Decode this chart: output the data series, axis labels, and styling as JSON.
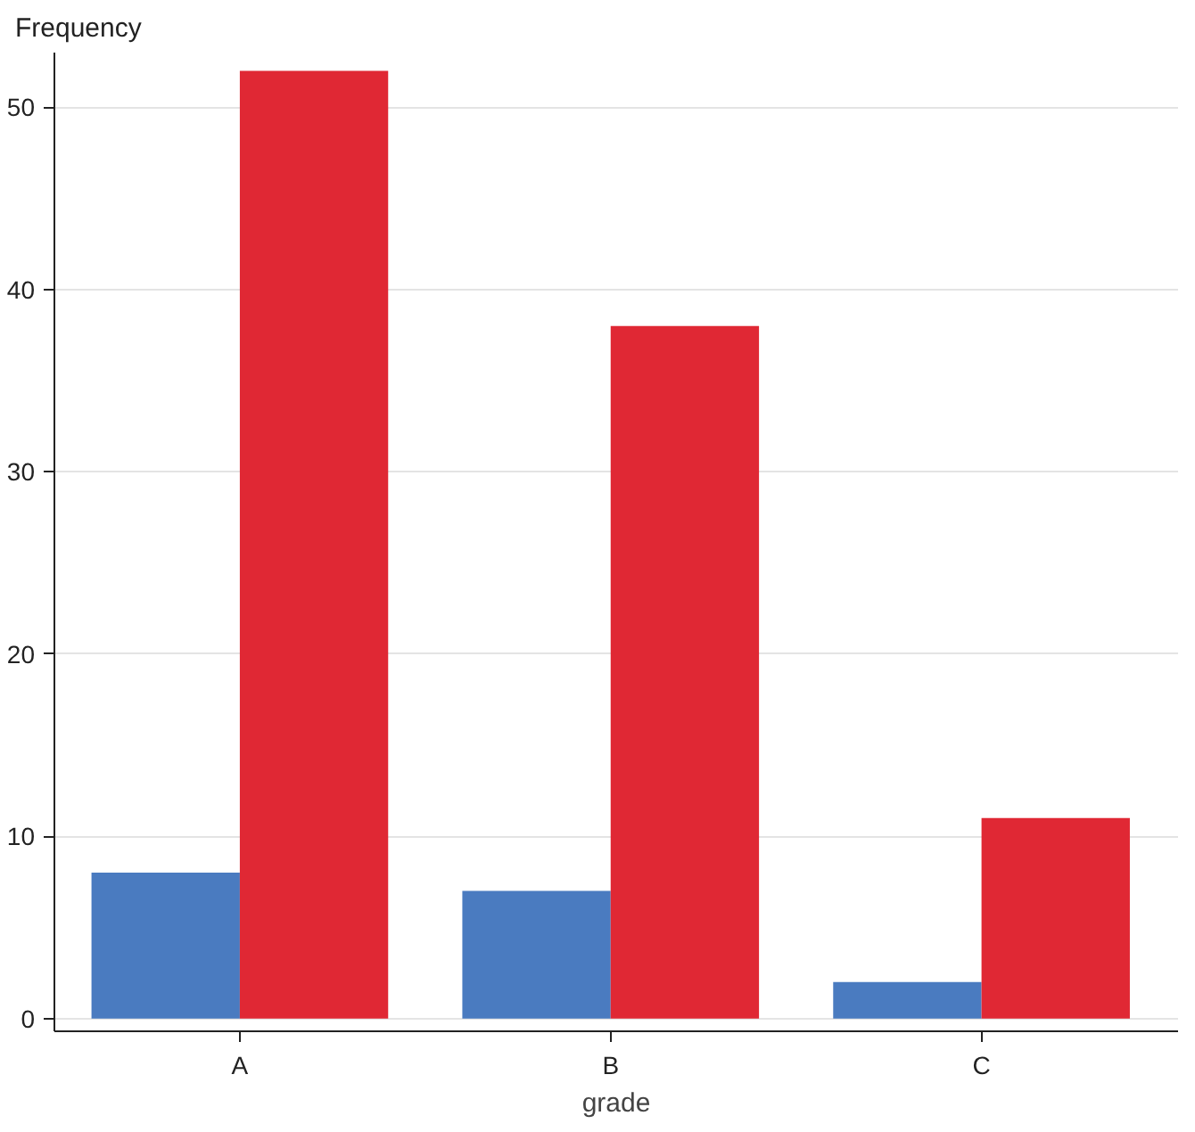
{
  "chart_data": {
    "type": "bar",
    "xlabel": "grade",
    "ylabel": "Frequency",
    "categories": [
      "A",
      "B",
      "C"
    ],
    "series": [
      {
        "color": "#4a7bc0",
        "values": [
          8,
          7,
          2
        ]
      },
      {
        "color": "#e02834",
        "values": [
          52,
          38,
          11
        ]
      }
    ],
    "ylim": [
      -0.7,
      53
    ],
    "yticks": [
      0,
      10,
      20,
      30,
      40,
      50
    ],
    "grid": "y"
  }
}
